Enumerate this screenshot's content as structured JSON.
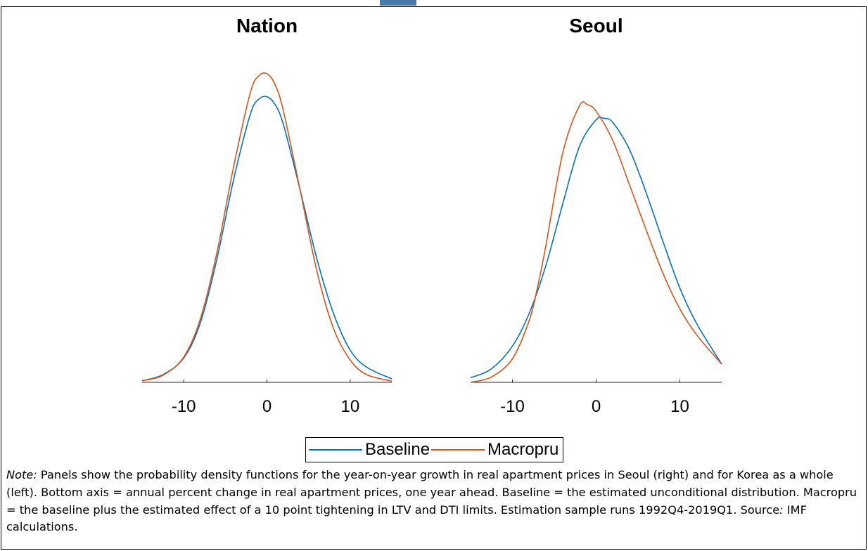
{
  "chart_data": [
    {
      "type": "line",
      "title": "Nation",
      "xlim": [
        -15,
        15
      ],
      "xticks": [
        -10,
        0,
        10
      ],
      "xtick_labels": [
        "-10",
        "0",
        "10"
      ],
      "series": [
        {
          "name": "Baseline",
          "color": "#0072BD",
          "x": [
            -15,
            -12.5,
            -10,
            -8,
            -6,
            -4,
            -2,
            -1,
            0,
            1,
            2,
            4,
            6,
            8,
            10,
            12,
            15
          ],
          "y": [
            0.0005,
            0.0024,
            0.0076,
            0.0186,
            0.0387,
            0.0635,
            0.0838,
            0.0885,
            0.0893,
            0.0868,
            0.0804,
            0.06,
            0.0386,
            0.0215,
            0.0101,
            0.0047,
            0.0011
          ]
        },
        {
          "name": "Macropru",
          "color": "#D95319",
          "x": [
            -15,
            -12.5,
            -10,
            -8,
            -6,
            -4,
            -2,
            -1,
            0,
            1,
            2,
            4,
            6,
            8,
            10,
            12,
            15
          ],
          "y": [
            0.0005,
            0.0022,
            0.0079,
            0.0198,
            0.0407,
            0.0675,
            0.0905,
            0.0958,
            0.0965,
            0.093,
            0.0846,
            0.06,
            0.0348,
            0.0168,
            0.007,
            0.0024,
            0.0004
          ]
        }
      ]
    },
    {
      "type": "line",
      "title": "Seoul",
      "xlim": [
        -15,
        15
      ],
      "xticks": [
        -10,
        0,
        10
      ],
      "xtick_labels": [
        "-10",
        "0",
        "10"
      ],
      "series": [
        {
          "name": "Baseline",
          "color": "#0072BD",
          "x": [
            -15,
            -12.5,
            -10,
            -8,
            -6,
            -4,
            -2,
            0,
            1,
            2,
            4,
            6,
            8,
            10,
            12,
            15
          ],
          "y": [
            0.001,
            0.003,
            0.008,
            0.0152,
            0.0258,
            0.0393,
            0.052,
            0.0579,
            0.0582,
            0.0573,
            0.0513,
            0.0417,
            0.031,
            0.0208,
            0.013,
            0.004
          ]
        },
        {
          "name": "Macropru",
          "color": "#D95319",
          "x": [
            -15,
            -12.5,
            -10,
            -8,
            -7,
            -6,
            -4,
            -2,
            -1,
            0,
            2,
            4,
            6,
            8,
            10,
            12,
            15
          ],
          "y": [
            0.0,
            0.0012,
            0.0052,
            0.0136,
            0.021,
            0.0302,
            0.0505,
            0.061,
            0.0612,
            0.0598,
            0.0533,
            0.0435,
            0.0335,
            0.024,
            0.0162,
            0.0105,
            0.004
          ]
        }
      ]
    }
  ],
  "legend": {
    "items": [
      {
        "label": "Baseline",
        "color": "#0072BD"
      },
      {
        "label": "Macropru",
        "color": "#D95319"
      }
    ]
  },
  "note": {
    "label": "Note:",
    "text": " Panels show the probability density functions for the year-on-year growth in real apartment prices in Seoul (right) and for Korea as a whole (left). Bottom axis = annual percent change in real apartment prices, one year ahead. Baseline = the estimated unconditional distribution. Macropru = the baseline plus the estimated effect of a 10 point tightening in LTV and DTI limits. Estimation sample runs 1992Q4-2019Q1. Source",
    "source_label": ":",
    "source_text": " IMF calculations."
  }
}
